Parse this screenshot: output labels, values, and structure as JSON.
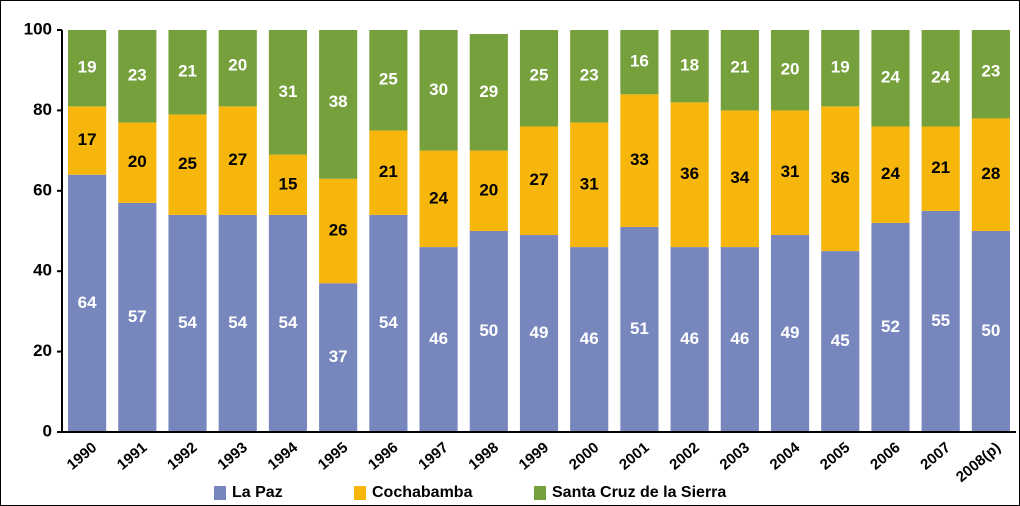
{
  "chart_data": {
    "type": "stacked_bar",
    "categories": [
      "1990",
      "1991",
      "1992",
      "1993",
      "1994",
      "1995",
      "1996",
      "1997",
      "1998",
      "1999",
      "2000",
      "2001",
      "2002",
      "2003",
      "2004",
      "2005",
      "2006",
      "2007",
      "2008(p)"
    ],
    "series": [
      {
        "name": "La Paz",
        "color": "#7886be",
        "values": [
          64,
          57,
          54,
          54,
          54,
          37,
          54,
          46,
          50,
          49,
          46,
          51,
          46,
          46,
          49,
          45,
          52,
          55,
          50
        ]
      },
      {
        "name": "Cochabamba",
        "color": "#f6b60c",
        "values": [
          17,
          20,
          25,
          27,
          15,
          26,
          21,
          24,
          20,
          27,
          31,
          33,
          36,
          34,
          31,
          36,
          24,
          21,
          28
        ]
      },
      {
        "name": "Santa Cruz de la Sierra",
        "color": "#76a03c",
        "values": [
          19,
          23,
          21,
          20,
          31,
          38,
          25,
          30,
          29,
          25,
          23,
          16,
          18,
          21,
          20,
          19,
          24,
          24,
          23
        ]
      }
    ],
    "ylim": [
      0,
      100
    ],
    "yticks": [
      0,
      20,
      40,
      60,
      80,
      100
    ],
    "grid": false
  }
}
